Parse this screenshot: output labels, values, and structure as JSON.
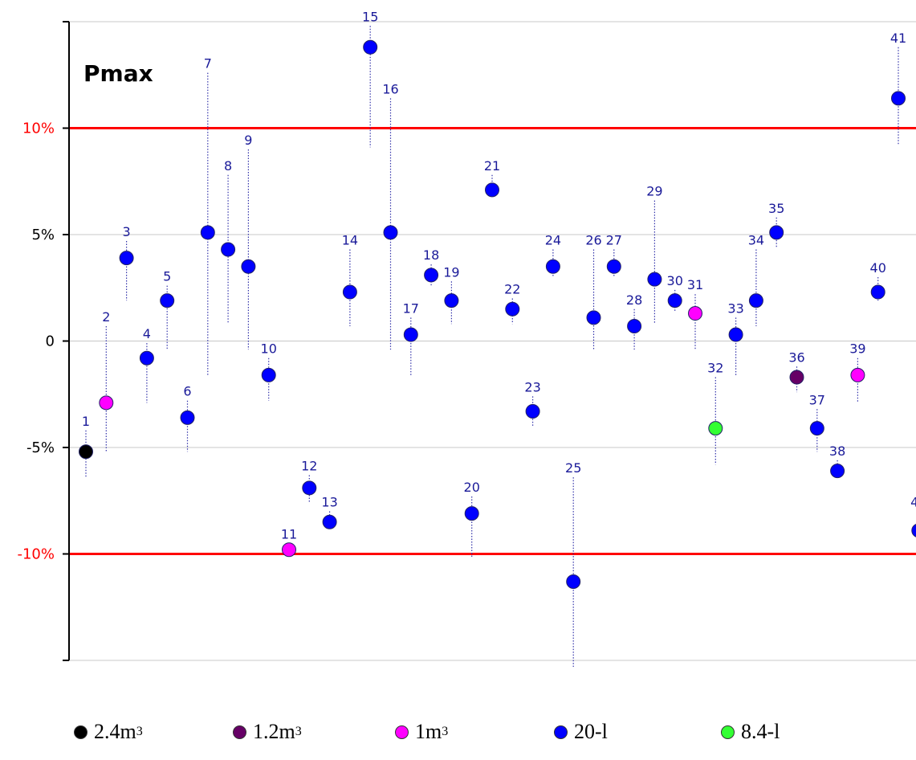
{
  "chart_data": {
    "type": "scatter",
    "title": "Pmax",
    "ylim": [
      -15,
      15
    ],
    "yticks": [
      {
        "value": 10,
        "label": "10%",
        "color": "#ff0000"
      },
      {
        "value": 5,
        "label": "5%",
        "color": "#000000"
      },
      {
        "value": 0,
        "label": "0",
        "color": "#000000"
      },
      {
        "value": -5,
        "label": "-5%",
        "color": "#000000"
      },
      {
        "value": -10,
        "label": "-10%",
        "color": "#ff0000"
      }
    ],
    "gridlines": [
      -15,
      -10,
      -5,
      0,
      5,
      10,
      15
    ],
    "reference_lines": [
      10,
      -10
    ],
    "reference_color": "#ff0000",
    "colors": {
      "2.4m3": "#000000",
      "1.2m3": "#660066",
      "1m3": "#ff00ff",
      "20-l": "#0000ff",
      "8.4-l": "#33ff33"
    },
    "points": [
      {
        "id": 1,
        "y": -5.2,
        "low": -6.4,
        "high": -4.2,
        "series": "2.4m3"
      },
      {
        "id": 2,
        "y": -2.9,
        "low": -5.2,
        "high": 0.7,
        "series": "1m3"
      },
      {
        "id": 3,
        "y": 3.9,
        "low": 1.9,
        "high": 4.7,
        "series": "20-l"
      },
      {
        "id": 4,
        "y": -0.8,
        "low": -2.9,
        "high": -0.1,
        "series": "20-l"
      },
      {
        "id": 5,
        "y": 1.9,
        "low": -0.4,
        "high": 2.6,
        "series": "20-l"
      },
      {
        "id": 6,
        "y": -3.6,
        "low": -5.2,
        "high": -2.8,
        "series": "20-l"
      },
      {
        "id": 7,
        "y": 5.1,
        "low": -1.6,
        "high": 12.6,
        "series": "20-l"
      },
      {
        "id": 8,
        "y": 4.3,
        "low": 0.8,
        "high": 7.8,
        "series": "20-l"
      },
      {
        "id": 9,
        "y": 3.5,
        "low": -0.4,
        "high": 9.0,
        "series": "20-l"
      },
      {
        "id": 10,
        "y": -1.6,
        "low": -2.8,
        "high": -0.8,
        "series": "20-l"
      },
      {
        "id": 11,
        "y": -9.8,
        "low": -10.1,
        "high": -9.5,
        "series": "1m3"
      },
      {
        "id": 12,
        "y": -6.9,
        "low": -7.6,
        "high": -6.3,
        "series": "20-l"
      },
      {
        "id": 13,
        "y": -8.5,
        "low": -8.8,
        "high": -8.0,
        "series": "20-l"
      },
      {
        "id": 14,
        "y": 2.3,
        "low": 0.7,
        "high": 4.3,
        "series": "20-l"
      },
      {
        "id": 15,
        "y": 13.8,
        "low": 9.1,
        "high": 14.8,
        "series": "20-l"
      },
      {
        "id": 16,
        "y": 5.1,
        "low": -0.4,
        "high": 11.4,
        "series": "20-l"
      },
      {
        "id": 17,
        "y": 0.3,
        "low": -1.6,
        "high": 1.1,
        "series": "20-l"
      },
      {
        "id": 18,
        "y": 3.1,
        "low": 2.6,
        "high": 3.6,
        "series": "20-l"
      },
      {
        "id": 19,
        "y": 1.9,
        "low": 0.8,
        "high": 2.8,
        "series": "20-l"
      },
      {
        "id": 20,
        "y": -8.1,
        "low": -10.2,
        "high": -7.3,
        "series": "20-l"
      },
      {
        "id": 21,
        "y": 7.1,
        "low": 6.9,
        "high": 7.8,
        "series": "20-l"
      },
      {
        "id": 22,
        "y": 1.5,
        "low": 0.8,
        "high": 2.0,
        "series": "20-l"
      },
      {
        "id": 23,
        "y": -3.3,
        "low": -4.0,
        "high": -2.6,
        "series": "20-l"
      },
      {
        "id": 24,
        "y": 3.5,
        "low": 3.0,
        "high": 4.3,
        "series": "20-l"
      },
      {
        "id": 25,
        "y": -11.3,
        "low": -15.3,
        "high": -6.4,
        "series": "20-l"
      },
      {
        "id": 26,
        "y": 1.1,
        "low": -0.4,
        "high": 4.3,
        "series": "20-l"
      },
      {
        "id": 27,
        "y": 3.5,
        "low": 3.0,
        "high": 4.3,
        "series": "20-l"
      },
      {
        "id": 28,
        "y": 0.7,
        "low": -0.4,
        "high": 1.5,
        "series": "20-l"
      },
      {
        "id": 29,
        "y": 2.9,
        "low": 0.8,
        "high": 6.6,
        "series": "20-l"
      },
      {
        "id": 30,
        "y": 1.9,
        "low": 1.4,
        "high": 2.4,
        "series": "20-l"
      },
      {
        "id": 31,
        "y": 1.3,
        "low": -0.4,
        "high": 2.2,
        "series": "1m3"
      },
      {
        "id": 32,
        "y": -4.1,
        "low": -5.8,
        "high": -1.7,
        "series": "8.4-l"
      },
      {
        "id": 33,
        "y": 0.3,
        "low": -1.6,
        "high": 1.1,
        "series": "20-l"
      },
      {
        "id": 34,
        "y": 1.9,
        "low": 0.7,
        "high": 4.3,
        "series": "20-l"
      },
      {
        "id": 35,
        "y": 5.1,
        "low": 4.4,
        "high": 5.8,
        "series": "20-l"
      },
      {
        "id": 36,
        "y": -1.7,
        "low": -2.4,
        "high": -1.2,
        "series": "1.2m3"
      },
      {
        "id": 37,
        "y": -4.1,
        "low": -5.2,
        "high": -3.2,
        "series": "20-l"
      },
      {
        "id": 38,
        "y": -6.1,
        "low": -6.4,
        "high": -5.6,
        "series": "20-l"
      },
      {
        "id": 39,
        "y": -1.6,
        "low": -2.9,
        "high": -0.8,
        "series": "1m3"
      },
      {
        "id": 40,
        "y": 2.3,
        "low": 1.9,
        "high": 3.0,
        "series": "20-l"
      },
      {
        "id": 41,
        "y": 11.4,
        "low": 9.2,
        "high": 13.8,
        "series": "20-l"
      },
      {
        "id": 42,
        "y": -8.9,
        "low": -9.5,
        "high": -8.0,
        "series": "20-l"
      }
    ]
  },
  "legend": [
    {
      "key": "2.4m3",
      "label": "2.4m",
      "sup": "3"
    },
    {
      "key": "1.2m3",
      "label": "1.2m",
      "sup": "3"
    },
    {
      "key": "1m3",
      "label": "1m",
      "sup": "3"
    },
    {
      "key": "20-l",
      "label": "20-l",
      "sup": ""
    },
    {
      "key": "8.4-l",
      "label": "8.4-l",
      "sup": ""
    }
  ]
}
